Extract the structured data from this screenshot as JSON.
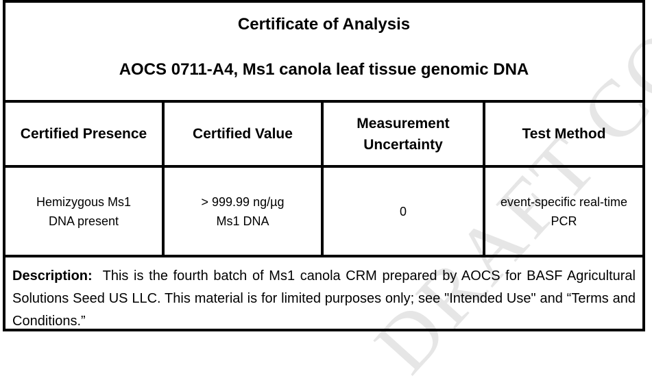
{
  "watermark": "DRAFT COPY",
  "title": {
    "line1": "Certificate of Analysis",
    "line2": "AOCS 0711-A4, Ms1 canola leaf tissue genomic DNA"
  },
  "table": {
    "headers": [
      {
        "line1": "Certified Presence",
        "line2": ""
      },
      {
        "line1": "Certified Value",
        "line2": ""
      },
      {
        "line1": "Measurement",
        "line2": "Uncertainty"
      },
      {
        "line1": "Test Method",
        "line2": ""
      }
    ],
    "row": [
      {
        "line1": "Hemizygous Ms1",
        "line2": "DNA present"
      },
      {
        "line1": "> 999.99 ng/µg",
        "line2": "Ms1 DNA"
      },
      {
        "line1": "0",
        "line2": ""
      },
      {
        "line1": "event-specific real-time",
        "line2": "PCR"
      }
    ]
  },
  "description": {
    "label": "Description:",
    "text": "This is the fourth batch of Ms1 canola CRM prepared by AOCS for BASF Agricultural Solutions Seed US LLC. This material is for limited purposes only; see \"Intended Use\" and “Terms and Conditions.”"
  }
}
